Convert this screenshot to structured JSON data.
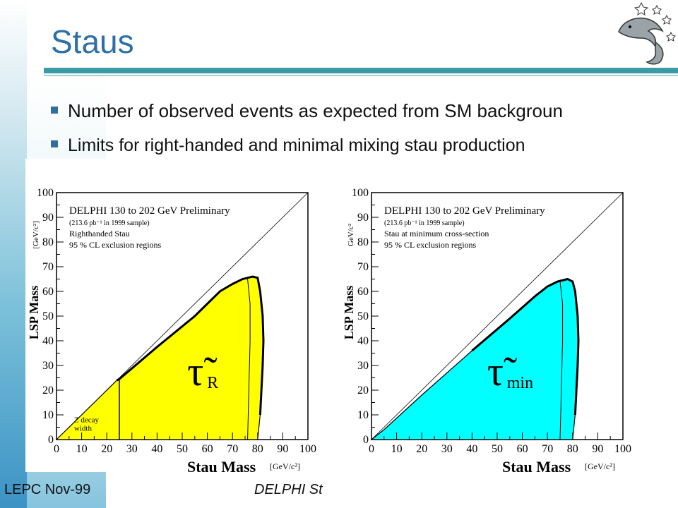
{
  "slide": {
    "title": "Staus",
    "bullets": [
      "Number of observed events as expected from SM backgroun",
      "Limits for right-handed and minimal mixing stau production"
    ],
    "footer_left": "LEPC Nov-99",
    "footer_center": "DELPHI St"
  },
  "colors": {
    "accent": "#2f6fa7",
    "rule": "#3b9aa6",
    "yellow": "#ffff00",
    "cyan": "#00ffff"
  },
  "logo_icon": "dolphin-logo",
  "chart_data": [
    {
      "type": "area",
      "title": "DELPHI 130 to 202 GeV Preliminary",
      "subtitle_lines": [
        "(213.6 pb⁻¹ in 1999 sample)",
        "Righthanded Stau",
        "95 % CL exclusion regions"
      ],
      "xlabel": "Stau Mass",
      "xunit": "[GeV/c²]",
      "ylabel": "LSP Mass",
      "yunit": "[GeV/c²]",
      "xlim": [
        0,
        100
      ],
      "ylim": [
        0,
        100
      ],
      "xticks": [
        "0",
        "10",
        "20",
        "30",
        "40",
        "50",
        "60",
        "70",
        "80",
        "90",
        "100"
      ],
      "yticks": [
        "0",
        "10",
        "20",
        "30",
        "40",
        "50",
        "60",
        "70",
        "80",
        "90",
        "100"
      ],
      "symbol": "τ̃",
      "symbol_sub": "R",
      "fill": "#ffff00",
      "region": [
        [
          0,
          0
        ],
        [
          24,
          24
        ],
        [
          25,
          24.5
        ],
        [
          40,
          37.5
        ],
        [
          55,
          50
        ],
        [
          65,
          60
        ],
        [
          70,
          63
        ],
        [
          74,
          65
        ],
        [
          78,
          66
        ],
        [
          80,
          65.5
        ],
        [
          81,
          60
        ],
        [
          82,
          50
        ],
        [
          82.3,
          40
        ],
        [
          82,
          30
        ],
        [
          81.5,
          20
        ],
        [
          81,
          10
        ],
        [
          80,
          0
        ]
      ],
      "inner_curve": [
        [
          76,
          65
        ],
        [
          77,
          55
        ],
        [
          77,
          40
        ],
        [
          76.5,
          20
        ],
        [
          76,
          0
        ]
      ],
      "zwidth_line_x": 25,
      "annotation": [
        "Z decay",
        "width"
      ]
    },
    {
      "type": "area",
      "title": "DELPHI 130 to 202 GeV Preliminary",
      "subtitle_lines": [
        "(213.6 pb⁻¹ in 1999 sample)",
        "Stau at minimum cross-section",
        "95 % CL exclusion regions"
      ],
      "xlabel": "Stau Mass",
      "xunit": "[GeV/c²]",
      "ylabel": "LSP Mass",
      "yunit": "GeV/c²",
      "xlim": [
        0,
        100
      ],
      "ylim": [
        0,
        100
      ],
      "xticks": [
        "0",
        "10",
        "20",
        "30",
        "40",
        "50",
        "60",
        "70",
        "80",
        "90",
        "100"
      ],
      "yticks": [
        "0",
        "10",
        "20",
        "30",
        "40",
        "50",
        "60",
        "70",
        "80",
        "90",
        "100"
      ],
      "symbol": "τ̃",
      "symbol_sub": "min",
      "fill": "#00ffff",
      "region": [
        [
          0,
          0
        ],
        [
          5,
          4
        ],
        [
          20,
          18
        ],
        [
          40,
          36
        ],
        [
          55,
          49
        ],
        [
          65,
          58
        ],
        [
          70,
          62
        ],
        [
          74,
          64
        ],
        [
          78,
          65
        ],
        [
          80,
          64
        ],
        [
          81,
          60
        ],
        [
          82,
          50
        ],
        [
          82.3,
          40
        ],
        [
          82,
          30
        ],
        [
          81.5,
          20
        ],
        [
          81,
          10
        ],
        [
          80,
          0
        ]
      ],
      "inner_curve": [
        [
          75,
          64
        ],
        [
          76,
          55
        ],
        [
          76,
          40
        ],
        [
          75.5,
          20
        ],
        [
          75,
          0
        ]
      ]
    }
  ]
}
